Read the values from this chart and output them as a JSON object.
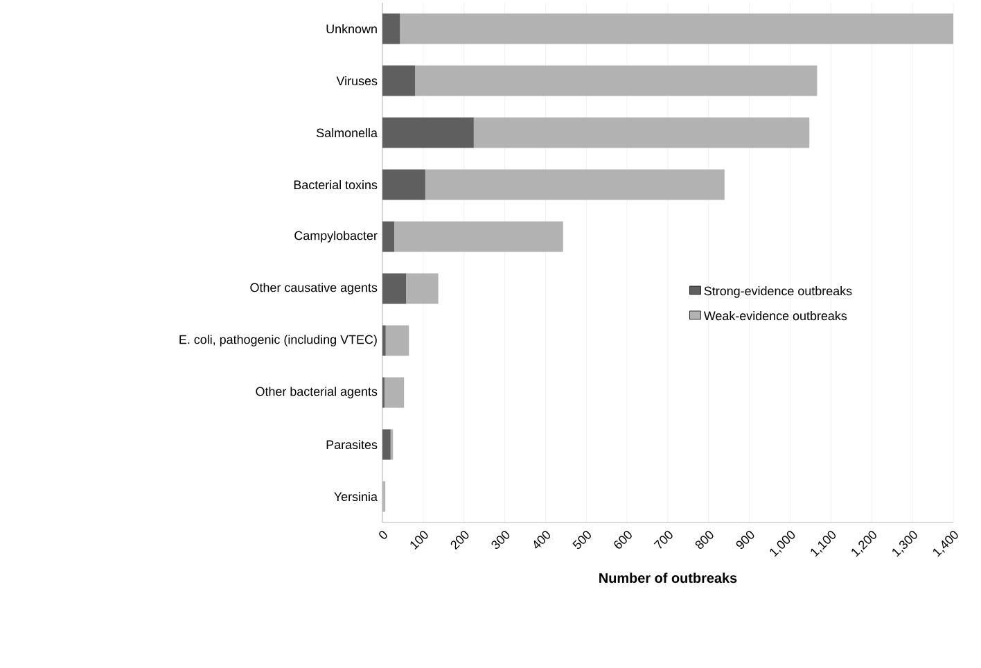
{
  "chart_data": {
    "type": "bar",
    "orientation": "horizontal",
    "stacked": true,
    "xlabel": "Number  of outbreaks",
    "categories": [
      "Unknown",
      "Viruses",
      "Salmonella",
      "Bacterial toxins",
      "Campylobacter",
      "Other causative agents",
      "E. coli, pathogenic (including VTEC)",
      "Other bacterial agents",
      "Parasites",
      "Yersinia"
    ],
    "series": [
      {
        "name": "Strong-evidence outbreaks",
        "color": "#5f5f5f",
        "values": [
          43,
          80,
          224,
          105,
          29,
          58,
          8,
          5,
          20,
          null
        ]
      },
      {
        "name": "Weak-evidence outbreaks",
        "color": "#b2b2b2",
        "values": [
          1357,
          986,
          823,
          734,
          414,
          79,
          57,
          48,
          6,
          7
        ]
      }
    ],
    "xlim": [
      0,
      1400
    ],
    "xticks": [
      0,
      100,
      200,
      300,
      400,
      500,
      600,
      700,
      800,
      900,
      {
        "value": 1000,
        "label": "1,000"
      },
      {
        "value": 1100,
        "label": "1,100"
      },
      {
        "value": 1200,
        "label": "1,200"
      },
      {
        "value": 1300,
        "label": "1,300"
      },
      {
        "value": 1400,
        "label": "1,400"
      }
    ],
    "grid": "x",
    "legend": "right"
  }
}
